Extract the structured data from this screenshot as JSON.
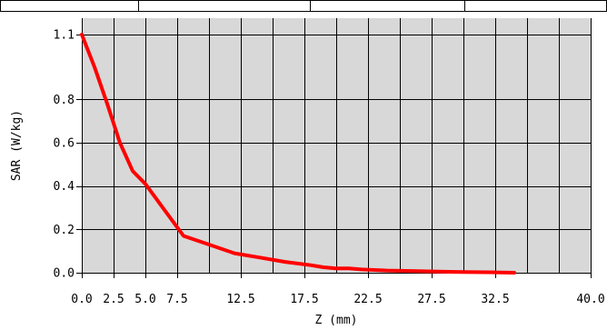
{
  "chart_data": {
    "type": "line",
    "title": "",
    "xlabel": "Z (mm)",
    "ylabel": "SAR (W/kg)",
    "xlim": [
      0,
      40
    ],
    "ylim": [
      0,
      1.1
    ],
    "x_tick_labels": [
      "0.0",
      "2.5",
      "5.0",
      "7.5",
      "12.5",
      "17.5",
      "22.5",
      "27.5",
      "32.5",
      "40.0"
    ],
    "x_tick_values": [
      0,
      2.5,
      5,
      7.5,
      12.5,
      17.5,
      22.5,
      27.5,
      32.5,
      40
    ],
    "y_tick_labels": [
      "0.0",
      "0.2",
      "0.4",
      "0.6",
      "0.8",
      "1.1"
    ],
    "y_tick_values": [
      0,
      0.2,
      0.4,
      0.6,
      0.8,
      1.1
    ],
    "grid": true,
    "legend": "none",
    "series": [
      {
        "color": "#ff0000",
        "x": [
          0,
          1,
          2,
          3,
          4,
          5,
          6,
          7,
          8,
          10,
          12,
          14,
          16,
          18,
          19,
          20,
          21,
          22,
          24,
          26,
          28,
          30,
          32,
          34
        ],
        "values": [
          1.1,
          0.95,
          0.78,
          0.6,
          0.47,
          0.41,
          0.33,
          0.25,
          0.17,
          0.13,
          0.09,
          0.07,
          0.05,
          0.035,
          0.025,
          0.02,
          0.02,
          0.015,
          0.01,
          0.008,
          0.005,
          0.003,
          0.002,
          0.0
        ]
      }
    ],
    "colors": {
      "plot_background": "#d8d8d8",
      "grid": "#000000",
      "line": "#ff0000"
    }
  }
}
